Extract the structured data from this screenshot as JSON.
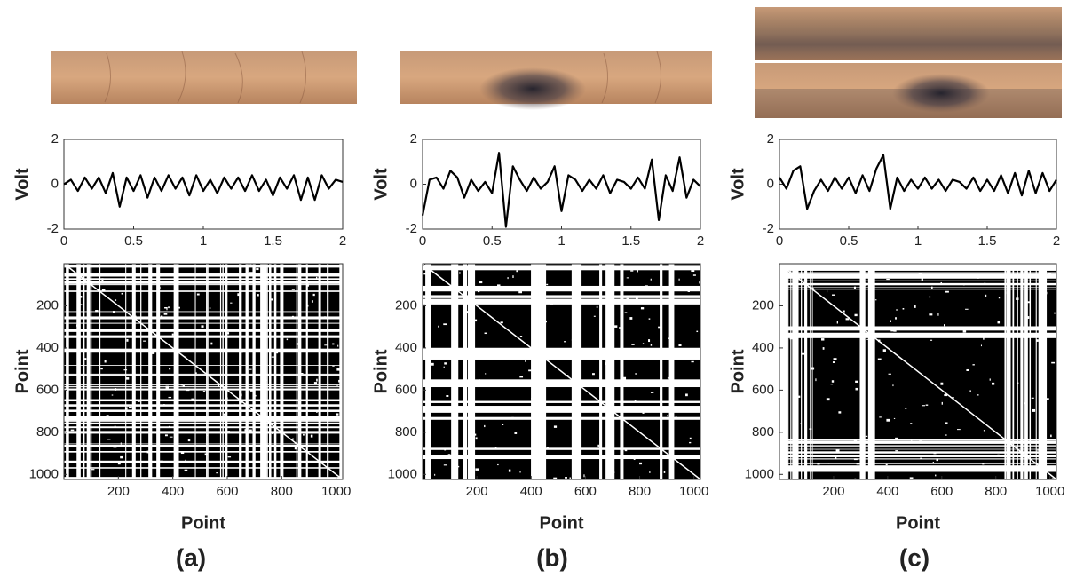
{
  "panel_labels": [
    "(a)",
    "(b)",
    "(c)"
  ],
  "chart_data": [
    {
      "type": "line",
      "ylabel": "Volt",
      "color": "#000000",
      "x": [
        0,
        0.05,
        0.1,
        0.15,
        0.2,
        0.25,
        0.3,
        0.35,
        0.4,
        0.45,
        0.5,
        0.55,
        0.6,
        0.65,
        0.7,
        0.75,
        0.8,
        0.85,
        0.9,
        0.95,
        1,
        1.05,
        1.1,
        1.15,
        1.2,
        1.25,
        1.3,
        1.35,
        1.4,
        1.45,
        1.5,
        1.55,
        1.6,
        1.65,
        1.7,
        1.75,
        1.8,
        1.85,
        1.9,
        1.95,
        2
      ],
      "values": [
        0,
        0.2,
        -0.3,
        0.3,
        -0.2,
        0.3,
        -0.4,
        0.5,
        -1.0,
        0.3,
        -0.3,
        0.4,
        -0.6,
        0.3,
        -0.3,
        0.4,
        -0.2,
        0.3,
        -0.5,
        0.4,
        -0.3,
        0.2,
        -0.4,
        0.3,
        -0.2,
        0.3,
        -0.3,
        0.4,
        -0.3,
        0.2,
        -0.5,
        0.3,
        -0.2,
        0.4,
        -0.7,
        0.3,
        -0.7,
        0.4,
        -0.2,
        0.2,
        0.1
      ],
      "xlim": [
        0,
        2
      ],
      "xticks": [
        0,
        0.5,
        1,
        1.5,
        2
      ],
      "ylim": [
        -2,
        2
      ],
      "yticks": [
        -2,
        0,
        2
      ]
    },
    {
      "type": "recurrence",
      "xlabel": "Point",
      "ylabel": "Point",
      "xlim": [
        0,
        1024
      ],
      "xticks": [
        200,
        400,
        600,
        800,
        1000
      ],
      "ylim": [
        0,
        1024
      ],
      "yticks": [
        200,
        400,
        600,
        800,
        1000
      ],
      "y_reversed": true
    },
    {
      "type": "line",
      "ylabel": "Volt",
      "color": "#000000",
      "x": [
        0,
        0.05,
        0.1,
        0.15,
        0.2,
        0.25,
        0.3,
        0.35,
        0.4,
        0.45,
        0.5,
        0.55,
        0.6,
        0.65,
        0.7,
        0.75,
        0.8,
        0.85,
        0.9,
        0.95,
        1,
        1.05,
        1.1,
        1.15,
        1.2,
        1.25,
        1.3,
        1.35,
        1.4,
        1.45,
        1.5,
        1.55,
        1.6,
        1.65,
        1.7,
        1.75,
        1.8,
        1.85,
        1.9,
        1.95,
        2
      ],
      "values": [
        -1.4,
        0.2,
        0.3,
        -0.2,
        0.6,
        0.3,
        -0.6,
        0.2,
        -0.3,
        0.1,
        -0.4,
        1.4,
        -1.9,
        0.8,
        0.2,
        -0.3,
        0.3,
        -0.2,
        0.1,
        0.8,
        -1.2,
        0.4,
        0.2,
        -0.3,
        0.2,
        -0.2,
        0.4,
        -0.4,
        0.2,
        0.1,
        -0.2,
        0.3,
        -0.2,
        1.1,
        -1.6,
        0.4,
        -0.3,
        1.2,
        -0.6,
        0.2,
        -0.1
      ],
      "xlim": [
        0,
        2
      ],
      "xticks": [
        0,
        0.5,
        1,
        1.5,
        2
      ],
      "ylim": [
        -2,
        2
      ],
      "yticks": [
        -2,
        0,
        2
      ]
    },
    {
      "type": "recurrence",
      "xlabel": "Point",
      "ylabel": "Point",
      "xlim": [
        0,
        1024
      ],
      "xticks": [
        200,
        400,
        600,
        800,
        1000
      ],
      "ylim": [
        0,
        1024
      ],
      "yticks": [
        200,
        400,
        600,
        800,
        1000
      ],
      "y_reversed": true
    },
    {
      "type": "line",
      "ylabel": "Volt",
      "color": "#000000",
      "x": [
        0,
        0.05,
        0.1,
        0.15,
        0.2,
        0.25,
        0.3,
        0.35,
        0.4,
        0.45,
        0.5,
        0.55,
        0.6,
        0.65,
        0.7,
        0.75,
        0.8,
        0.85,
        0.9,
        0.95,
        1,
        1.05,
        1.1,
        1.15,
        1.2,
        1.25,
        1.3,
        1.35,
        1.4,
        1.45,
        1.5,
        1.55,
        1.6,
        1.65,
        1.7,
        1.75,
        1.8,
        1.85,
        1.9,
        1.95,
        2
      ],
      "values": [
        0.3,
        -0.2,
        0.6,
        0.8,
        -1.1,
        -0.3,
        0.2,
        -0.3,
        0.3,
        -0.2,
        0.3,
        -0.4,
        0.4,
        -0.3,
        0.7,
        1.3,
        -1.1,
        0.3,
        -0.3,
        0.2,
        -0.2,
        0.3,
        -0.2,
        0.2,
        -0.3,
        0.2,
        0.1,
        -0.2,
        0.3,
        -0.3,
        0.2,
        -0.3,
        0.4,
        -0.4,
        0.5,
        -0.5,
        0.6,
        -0.4,
        0.5,
        -0.3,
        0.2
      ],
      "xlim": [
        0,
        2
      ],
      "xticks": [
        0,
        0.5,
        1,
        1.5,
        2
      ],
      "ylim": [
        -2,
        2
      ],
      "yticks": [
        -2,
        0,
        2
      ]
    },
    {
      "type": "recurrence",
      "xlabel": "Point",
      "ylabel": "Point",
      "xlim": [
        0,
        1024
      ],
      "xticks": [
        200,
        400,
        600,
        800,
        1000
      ],
      "ylim": [
        0,
        1024
      ],
      "yticks": [
        200,
        400,
        600,
        800,
        1000
      ],
      "y_reversed": true
    }
  ]
}
